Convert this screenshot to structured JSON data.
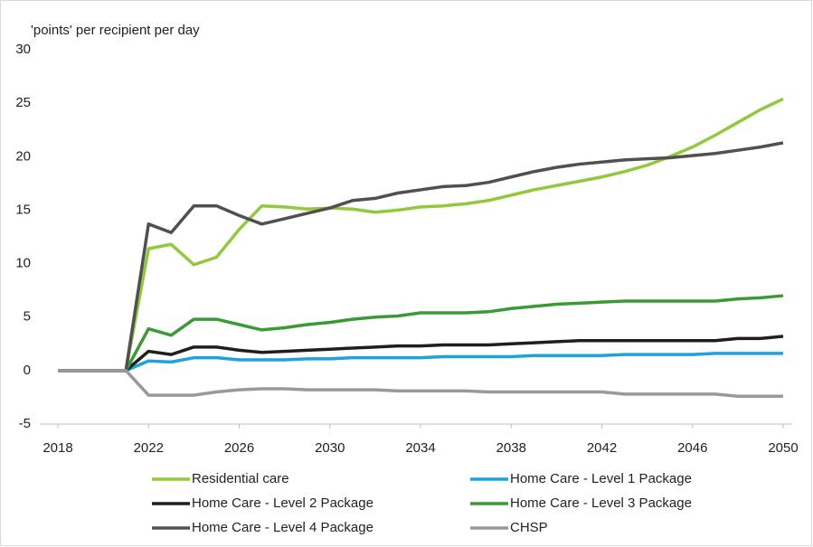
{
  "chart_data": {
    "type": "line",
    "y_axis_label": "'points' per recipient per day",
    "x": [
      2018,
      2019,
      2020,
      2021,
      2022,
      2023,
      2024,
      2025,
      2026,
      2027,
      2028,
      2029,
      2030,
      2031,
      2032,
      2033,
      2034,
      2035,
      2036,
      2037,
      2038,
      2039,
      2040,
      2041,
      2042,
      2043,
      2044,
      2045,
      2046,
      2047,
      2048,
      2049,
      2050
    ],
    "xlim": [
      2018,
      2050
    ],
    "xticks": [
      2018,
      2022,
      2026,
      2030,
      2034,
      2038,
      2042,
      2046,
      2050
    ],
    "ylim": [
      -5,
      30
    ],
    "yticks": [
      -5,
      0,
      5,
      10,
      15,
      20,
      25,
      30
    ],
    "grid": false,
    "legend": "bottom",
    "series": [
      {
        "name": "Residential care",
        "color": "#92c83e",
        "values": [
          0,
          0,
          0,
          0,
          11.4,
          11.8,
          9.9,
          10.6,
          13.2,
          15.4,
          15.3,
          15.1,
          15.2,
          15.1,
          14.8,
          15.0,
          15.3,
          15.4,
          15.6,
          15.9,
          16.4,
          16.9,
          17.3,
          17.7,
          18.1,
          18.6,
          19.2,
          20.0,
          20.9,
          22.0,
          23.2,
          24.4,
          25.4
        ]
      },
      {
        "name": "Home Care - Level 1 Package",
        "color": "#1ca3dc",
        "values": [
          0,
          0,
          0,
          0,
          0.9,
          0.8,
          1.2,
          1.2,
          1.0,
          1.0,
          1.0,
          1.1,
          1.1,
          1.2,
          1.2,
          1.2,
          1.2,
          1.3,
          1.3,
          1.3,
          1.3,
          1.4,
          1.4,
          1.4,
          1.4,
          1.5,
          1.5,
          1.5,
          1.5,
          1.6,
          1.6,
          1.6,
          1.6
        ]
      },
      {
        "name": "Home Care - Level 2 Package",
        "color": "#1e1e1e",
        "values": [
          0,
          0,
          0,
          0,
          1.8,
          1.5,
          2.2,
          2.2,
          1.9,
          1.7,
          1.8,
          1.9,
          2.0,
          2.1,
          2.2,
          2.3,
          2.3,
          2.4,
          2.4,
          2.4,
          2.5,
          2.6,
          2.7,
          2.8,
          2.8,
          2.8,
          2.8,
          2.8,
          2.8,
          2.8,
          3.0,
          3.0,
          3.2
        ]
      },
      {
        "name": "Home Care - Level 3 Package",
        "color": "#3b9a35",
        "values": [
          0,
          0,
          0,
          0,
          3.9,
          3.3,
          4.8,
          4.8,
          4.3,
          3.8,
          4.0,
          4.3,
          4.5,
          4.8,
          5.0,
          5.1,
          5.4,
          5.4,
          5.4,
          5.5,
          5.8,
          6.0,
          6.2,
          6.3,
          6.4,
          6.5,
          6.5,
          6.5,
          6.5,
          6.5,
          6.7,
          6.8,
          7.0
        ]
      },
      {
        "name": "Home Care - Level 4 Package",
        "color": "#505050",
        "values": [
          0,
          0,
          0,
          0,
          13.7,
          12.9,
          15.4,
          15.4,
          14.5,
          13.7,
          14.2,
          14.7,
          15.2,
          15.9,
          16.1,
          16.6,
          16.9,
          17.2,
          17.3,
          17.6,
          18.1,
          18.6,
          19.0,
          19.3,
          19.5,
          19.7,
          19.8,
          19.9,
          20.1,
          20.3,
          20.6,
          20.9,
          21.3
        ]
      },
      {
        "name": "CHSP",
        "color": "#999999",
        "values": [
          0,
          0,
          0,
          0,
          -2.3,
          -2.3,
          -2.3,
          -2.0,
          -1.8,
          -1.7,
          -1.7,
          -1.8,
          -1.8,
          -1.8,
          -1.8,
          -1.9,
          -1.9,
          -1.9,
          -1.9,
          -2.0,
          -2.0,
          -2.0,
          -2.0,
          -2.0,
          -2.0,
          -2.2,
          -2.2,
          -2.2,
          -2.2,
          -2.2,
          -2.4,
          -2.4,
          -2.4
        ]
      }
    ]
  }
}
